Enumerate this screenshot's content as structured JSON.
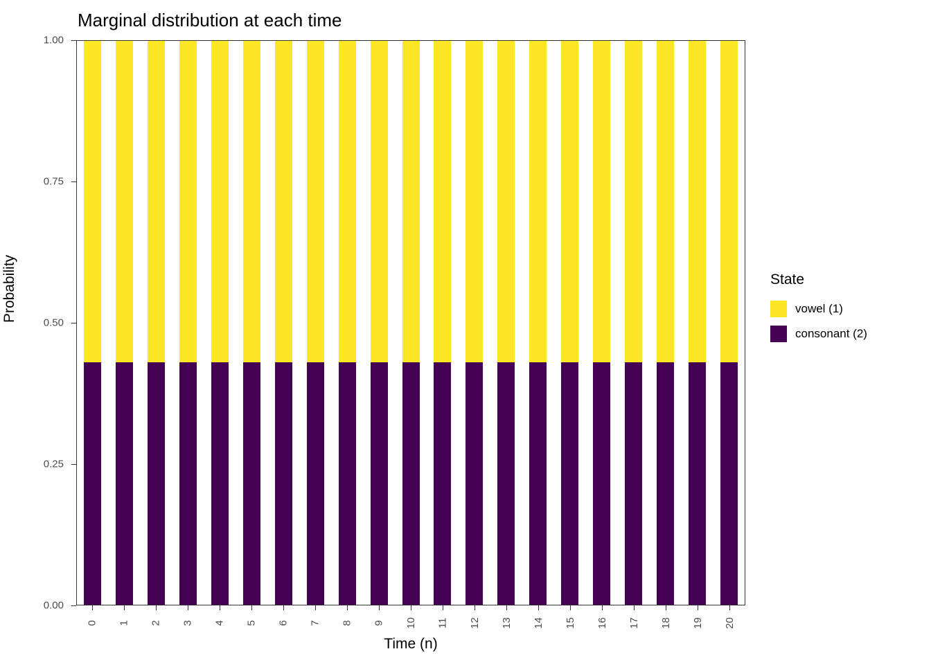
{
  "title": "Marginal distribution at each time",
  "x_axis": {
    "title": "Time (n)"
  },
  "y_axis": {
    "title": "Probability",
    "ticks": [
      "0.00",
      "0.25",
      "0.50",
      "0.75",
      "1.00"
    ]
  },
  "legend": {
    "title": "State",
    "items": [
      {
        "label": "vowel (1)",
        "color": "#FDE725"
      },
      {
        "label": "consonant (2)",
        "color": "#440154"
      }
    ]
  },
  "chart_data": {
    "type": "bar",
    "stacked": true,
    "title": "Marginal distribution at each time",
    "xlabel": "Time (n)",
    "ylabel": "Probability",
    "ylim": [
      0,
      1
    ],
    "grid": false,
    "legend_position": "right",
    "categories": [
      "0",
      "1",
      "2",
      "3",
      "4",
      "5",
      "6",
      "7",
      "8",
      "9",
      "10",
      "11",
      "12",
      "13",
      "14",
      "15",
      "16",
      "17",
      "18",
      "19",
      "20"
    ],
    "series": [
      {
        "name": "consonant (2)",
        "color": "#440154",
        "values": [
          0.43,
          0.43,
          0.43,
          0.43,
          0.43,
          0.43,
          0.43,
          0.43,
          0.43,
          0.43,
          0.43,
          0.43,
          0.43,
          0.43,
          0.43,
          0.43,
          0.43,
          0.43,
          0.43,
          0.43,
          0.43
        ]
      },
      {
        "name": "vowel (1)",
        "color": "#FDE725",
        "values": [
          0.57,
          0.57,
          0.57,
          0.57,
          0.57,
          0.57,
          0.57,
          0.57,
          0.57,
          0.57,
          0.57,
          0.57,
          0.57,
          0.57,
          0.57,
          0.57,
          0.57,
          0.57,
          0.57,
          0.57,
          0.57
        ]
      }
    ]
  }
}
